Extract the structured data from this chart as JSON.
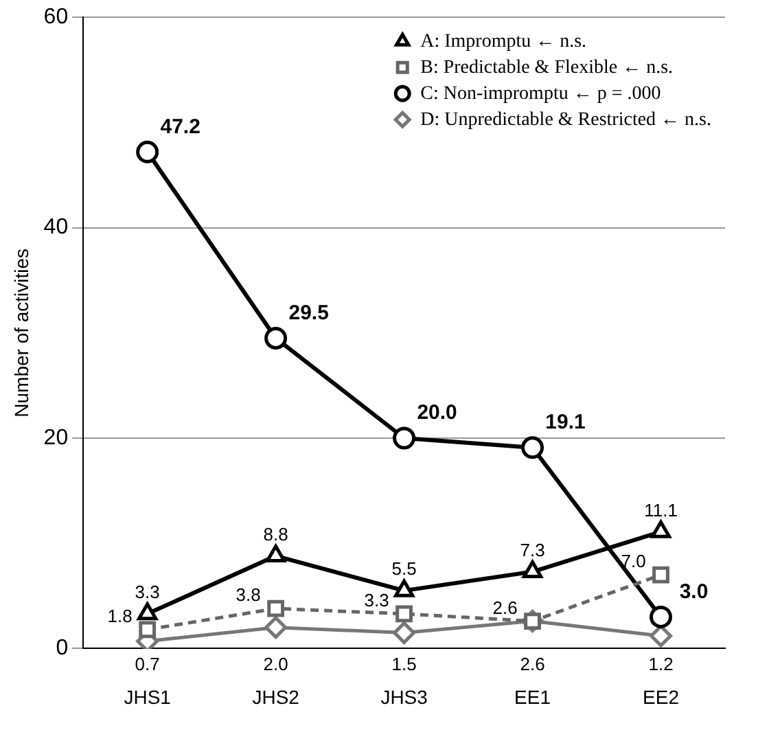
{
  "chart_data": {
    "type": "line",
    "ylabel": "Number of activities",
    "categories": [
      "JHS1",
      "JHS2",
      "JHS3",
      "EE1",
      "EE2"
    ],
    "series": [
      {
        "name": "A: Impromptu ← n.s.",
        "color": "#000000",
        "marker": "triangle",
        "line_style": "solid",
        "values": [
          3.3,
          8.8,
          5.5,
          7.3,
          11.1
        ],
        "value_labels": [
          "3.3",
          "8.8",
          "5.5",
          "7.3",
          "11.1"
        ]
      },
      {
        "name": "B: Predictable & Flexible ← n.s.",
        "color": "#666666",
        "marker": "square",
        "line_style": "dashed",
        "values": [
          1.8,
          3.8,
          3.3,
          2.6,
          7.0
        ],
        "value_labels": [
          "1.8",
          "3.8",
          "3.3",
          "2.6",
          "7.0"
        ]
      },
      {
        "name": "C: Non-impromptu ← p = .000",
        "color": "#000000",
        "marker": "circle",
        "line_style": "solid",
        "values": [
          47.2,
          29.5,
          20.0,
          19.1,
          3.0
        ],
        "value_labels": [
          "47.2",
          "29.5",
          "20.0",
          "19.1",
          "3.0"
        ]
      },
      {
        "name": "D: Unpredictable & Restricted ← n.s.",
        "color": "#777777",
        "marker": "diamond",
        "line_style": "solid",
        "values": [
          0.7,
          2.0,
          1.5,
          2.6,
          1.2
        ],
        "value_labels": [
          "0.7",
          "2.0",
          "1.5",
          "2.6",
          "1.2"
        ]
      }
    ],
    "ylim": [
      0,
      60
    ],
    "yticks": [
      0,
      20,
      40,
      60
    ],
    "grid": "y",
    "legend": "top right"
  }
}
